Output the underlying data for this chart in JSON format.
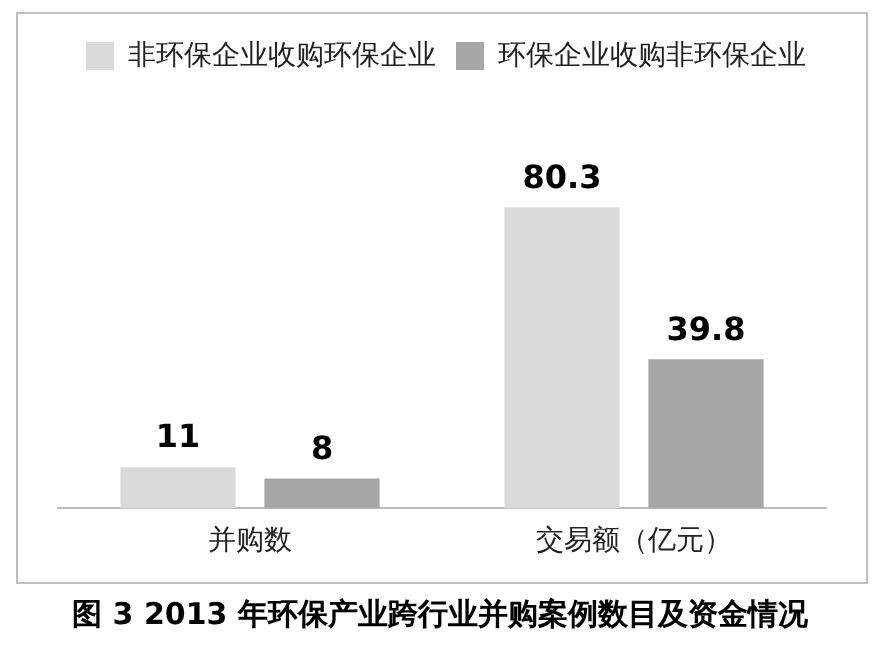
{
  "chart_data": {
    "type": "bar",
    "title": "图 3 2013 年环保产业跨行业并购案例数目及资金情况",
    "categories": [
      "并购数",
      "交易额（亿元）"
    ],
    "series": [
      {
        "name": "非环保企业收购环保企业",
        "color": "#d9d9d9",
        "values": [
          11,
          80.3
        ]
      },
      {
        "name": "环保企业收购非环保企业",
        "color": "#a6a6a6",
        "values": [
          8,
          39.8
        ]
      }
    ],
    "data_labels": true,
    "legend": "top right",
    "tick_labels": "x",
    "grid": false
  }
}
